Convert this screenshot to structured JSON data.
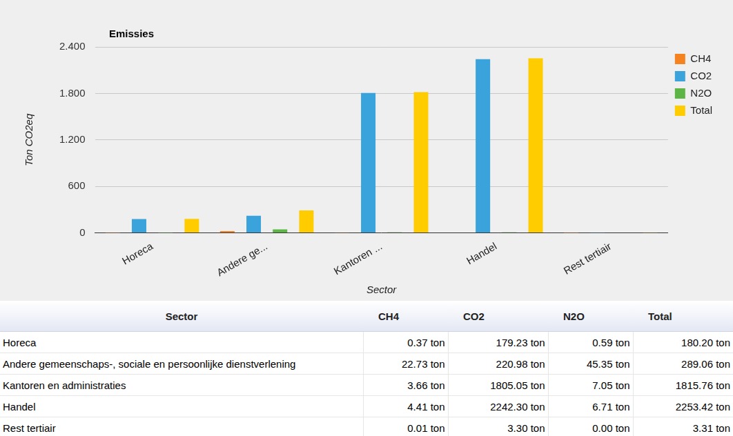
{
  "chart_data": {
    "type": "bar",
    "title": "Emissies",
    "x_label": "Sector",
    "y_label": "Ton CO2eq",
    "categories": [
      "Horeca",
      "Andere ge...",
      "Kantoren ...",
      "Handel",
      "Rest tertiair"
    ],
    "series": [
      {
        "name": "CH4",
        "color": "#f58220",
        "values": [
          0.37,
          22.73,
          3.66,
          4.41,
          0.01
        ]
      },
      {
        "name": "CO2",
        "color": "#3ba3dc",
        "values": [
          179.23,
          220.98,
          1805.05,
          2242.3,
          3.3
        ]
      },
      {
        "name": "N2O",
        "color": "#5cb545",
        "values": [
          0.59,
          45.35,
          7.05,
          6.71,
          0.0
        ]
      },
      {
        "name": "Total",
        "color": "#ffcc00",
        "values": [
          180.2,
          289.06,
          1815.76,
          2253.42,
          3.31
        ]
      }
    ],
    "ylim": [
      0,
      2400
    ],
    "yticks": [
      0,
      600,
      {
        "value": 1200,
        "label": "1.200"
      },
      {
        "value": 1800,
        "label": "1.800"
      },
      {
        "value": 2400,
        "label": "2.400"
      }
    ],
    "grid": true,
    "legend": "right"
  },
  "table": {
    "header": [
      "Sector",
      "CH4",
      "CO2",
      "N2O",
      "Total"
    ],
    "rows": [
      [
        "Horeca",
        "0.37 ton",
        "179.23 ton",
        "0.59 ton",
        "180.20 ton"
      ],
      [
        "Andere gemeenschaps-, sociale en persoonlijke dienstverlening",
        "22.73 ton",
        "220.98 ton",
        "45.35 ton",
        "289.06 ton"
      ],
      [
        "Kantoren en administraties",
        "3.66 ton",
        "1805.05 ton",
        "7.05 ton",
        "1815.76 ton"
      ],
      [
        "Handel",
        "4.41 ton",
        "2242.30 ton",
        "6.71 ton",
        "2253.42 ton"
      ],
      [
        "Rest tertiair",
        "0.01 ton",
        "3.30 ton",
        "0.00 ton",
        "3.31 ton"
      ]
    ]
  }
}
